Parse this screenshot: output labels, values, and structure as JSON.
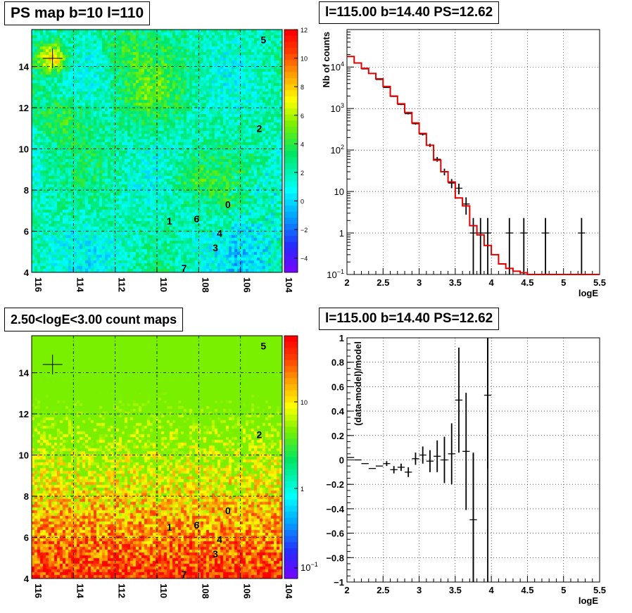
{
  "panels": {
    "top_left": {
      "title": "PS map b=10 l=110"
    },
    "top_right": {
      "title": "l=115.00 b=14.40 PS=12.62"
    },
    "bottom_left": {
      "title": "2.50<logE<3.00 count maps"
    },
    "bottom_right": {
      "title": "l=115.00 b=14.40 PS=12.62"
    }
  },
  "chart_data": [
    {
      "id": "ps_map",
      "type": "heatmap",
      "title": "PS map b=10 l=110",
      "x_ticks": [
        "116",
        "114",
        "112",
        "110",
        "108",
        "106",
        "104"
      ],
      "y_ticks": [
        "4",
        "6",
        "8",
        "10",
        "12",
        "14"
      ],
      "xlim": [
        116,
        104
      ],
      "ylim": [
        4,
        15.8
      ],
      "colorbar": {
        "min": -5,
        "max": 12,
        "ticks": [
          "12",
          "10",
          "8",
          "6",
          "4",
          "2",
          "0",
          "−2",
          "−4"
        ]
      },
      "sources": [
        {
          "label": "5",
          "l": 104.9,
          "b": 15.3
        },
        {
          "label": "2",
          "l": 105.1,
          "b": 11.0
        },
        {
          "label": "0",
          "l": 106.6,
          "b": 7.3
        },
        {
          "label": "6",
          "l": 108.1,
          "b": 6.6
        },
        {
          "label": "1",
          "l": 109.4,
          "b": 6.5
        },
        {
          "label": "4",
          "l": 107.0,
          "b": 5.9
        },
        {
          "label": "3",
          "l": 107.2,
          "b": 5.2
        },
        {
          "label": "7",
          "l": 108.7,
          "b": 4.2
        }
      ],
      "cross": {
        "l": 115.0,
        "b": 14.4
      },
      "grid": true
    },
    {
      "id": "spectrum",
      "type": "line",
      "title": "l=115.00 b=14.40 PS=12.62",
      "xlabel": "logE",
      "ylabel": "Nb of counts",
      "xlim": [
        2,
        5.5
      ],
      "ylim": [
        0.1,
        80000
      ],
      "yscale": "log",
      "x_ticks": [
        "2",
        "2.5",
        "3",
        "3.5",
        "4",
        "4.5",
        "5",
        "5.5"
      ],
      "y_ticks": [
        "10−1",
        "1",
        "10",
        "102",
        "103",
        "104"
      ],
      "bin_width": 0.1,
      "data_points": {
        "x": [
          2.05,
          2.15,
          2.25,
          2.35,
          2.45,
          2.55,
          2.65,
          2.75,
          2.85,
          2.95,
          3.05,
          3.15,
          3.25,
          3.35,
          3.45,
          3.55,
          3.65,
          3.75,
          3.85,
          3.95,
          4.25,
          4.45,
          4.75,
          5.25
        ],
        "y": [
          18000,
          12500,
          9000,
          7000,
          5000,
          3200,
          1950,
          1250,
          750,
          430,
          240,
          130,
          60,
          30,
          16,
          12,
          5,
          1,
          1,
          1,
          1,
          1,
          1,
          1
        ]
      },
      "model": {
        "x": [
          2.05,
          2.15,
          2.25,
          2.35,
          2.45,
          2.55,
          2.65,
          2.75,
          2.85,
          2.95,
          3.05,
          3.15,
          3.25,
          3.35,
          3.45,
          3.55,
          3.65,
          3.75,
          3.85,
          3.95,
          4.05,
          4.15,
          4.25,
          4.35,
          4.45,
          4.55,
          4.65,
          4.75,
          4.85,
          4.95,
          5.05,
          5.15,
          5.25,
          5.35,
          5.45
        ],
        "y": [
          18000,
          12500,
          9300,
          7000,
          5200,
          3400,
          2000,
          1300,
          800,
          450,
          250,
          130,
          57,
          30,
          17,
          7,
          4.5,
          1.5,
          0.9,
          0.5,
          0.3,
          0.18,
          0.14,
          0.12,
          0.11,
          0.1,
          0.1,
          0.1,
          0.1,
          0.1,
          0.1,
          0.1,
          0.1,
          0.1,
          0.1
        ]
      },
      "grid": true
    },
    {
      "id": "count_map",
      "type": "heatmap",
      "title": "2.50<logE<3.00 count maps",
      "x_ticks": [
        "116",
        "114",
        "112",
        "110",
        "108",
        "106",
        "104"
      ],
      "y_ticks": [
        "4",
        "6",
        "8",
        "10",
        "12",
        "14"
      ],
      "xlim": [
        116,
        104
      ],
      "ylim": [
        4,
        15.8
      ],
      "colorbar": {
        "scale": "log",
        "ticks": [
          "10",
          "1",
          "10−1"
        ]
      },
      "sources": [
        {
          "label": "5",
          "l": 104.9,
          "b": 15.3
        },
        {
          "label": "2",
          "l": 105.1,
          "b": 11.0
        },
        {
          "label": "0",
          "l": 106.6,
          "b": 7.3
        },
        {
          "label": "6",
          "l": 108.1,
          "b": 6.6
        },
        {
          "label": "1",
          "l": 109.4,
          "b": 6.5
        },
        {
          "label": "4",
          "l": 107.0,
          "b": 5.9
        },
        {
          "label": "3",
          "l": 107.2,
          "b": 5.2
        },
        {
          "label": "7",
          "l": 108.7,
          "b": 4.2
        }
      ],
      "cross": {
        "l": 115.0,
        "b": 14.4
      },
      "grid": true
    },
    {
      "id": "residuals",
      "type": "scatter",
      "title": "l=115.00 b=14.40 PS=12.62",
      "xlabel": "logE",
      "ylabel": "(data-model)/model",
      "xlim": [
        2,
        5.5
      ],
      "ylim": [
        -1,
        1
      ],
      "x_ticks": [
        "2",
        "2.5",
        "3",
        "3.5",
        "4",
        "4.5",
        "5",
        "5.5"
      ],
      "y_ticks": [
        "−1",
        "−0.8",
        "−0.6",
        "−0.4",
        "−0.2",
        "0",
        "0.2",
        "0.4",
        "0.6",
        "0.8",
        "1"
      ],
      "points": {
        "x": [
          2.05,
          2.15,
          2.25,
          2.35,
          2.45,
          2.55,
          2.65,
          2.75,
          2.85,
          2.95,
          3.05,
          3.15,
          3.25,
          3.35,
          3.45,
          3.55,
          3.65,
          3.75,
          3.95
        ],
        "y": [
          0.02,
          0.0,
          -0.03,
          -0.07,
          -0.05,
          -0.03,
          -0.08,
          -0.06,
          -0.1,
          0.01,
          0.04,
          -0.01,
          0.03,
          0.0,
          0.05,
          0.49,
          0.07,
          -0.49,
          0.53
        ],
        "err": [
          0.0,
          0.0,
          0.0,
          0.0,
          0.0,
          0.02,
          0.03,
          0.03,
          0.04,
          0.05,
          0.07,
          0.09,
          0.13,
          0.19,
          0.25,
          0.43,
          0.48,
          0.55,
          0.6
        ]
      },
      "grid": true
    }
  ]
}
